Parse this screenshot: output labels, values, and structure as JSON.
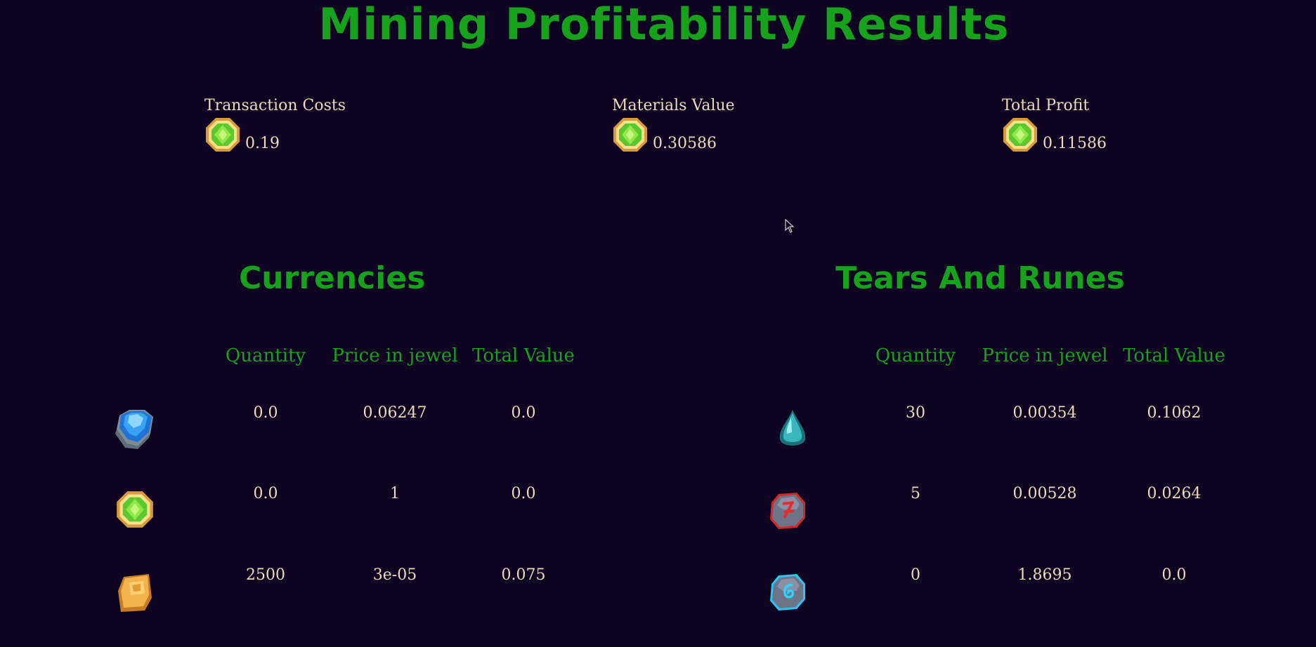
{
  "page": {
    "title": "Mining Profitability Results"
  },
  "summary": [
    {
      "label": "Transaction Costs",
      "value": "0.19",
      "icon": "jewel-icon"
    },
    {
      "label": "Materials Value",
      "value": "0.30586",
      "icon": "jewel-icon"
    },
    {
      "label": "Total Profit",
      "value": "0.11586",
      "icon": "jewel-icon"
    }
  ],
  "currencies": {
    "title": "Currencies",
    "headers": {
      "quantity": "Quantity",
      "price": "Price in jewel",
      "total": "Total Value"
    },
    "rows": [
      {
        "icon": "blue-gem-icon",
        "quantity": "0.0",
        "price": "0.06247",
        "total": "0.0"
      },
      {
        "icon": "jewel-icon",
        "quantity": "0.0",
        "price": "1",
        "total": "0.0"
      },
      {
        "icon": "gold-bar-icon",
        "quantity": "2500",
        "price": "3e-05",
        "total": "0.075"
      }
    ]
  },
  "tears_runes": {
    "title": "Tears And Runes",
    "headers": {
      "quantity": "Quantity",
      "price": "Price in jewel",
      "total": "Total Value"
    },
    "rows": [
      {
        "icon": "tear-drop-icon",
        "quantity": "30",
        "price": "0.00354",
        "total": "0.1062"
      },
      {
        "icon": "red-rune-icon",
        "quantity": "5",
        "price": "0.00528",
        "total": "0.0264"
      },
      {
        "icon": "blue-rune-icon",
        "quantity": "0",
        "price": "1.8695",
        "total": "0.0"
      }
    ]
  },
  "colors": {
    "background": "#0e0320",
    "accent_green": "#16a21b",
    "text": "#ecdcbc"
  }
}
